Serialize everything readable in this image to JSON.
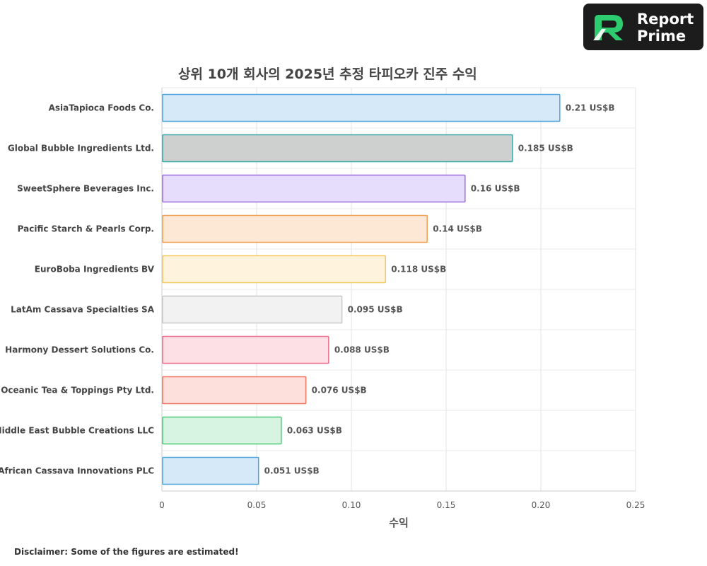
{
  "brand": {
    "logo_line1": "Report",
    "logo_line2": "Prime",
    "logo_colors": [
      "#2ecc71",
      "#1abc9c",
      "#ffffff"
    ]
  },
  "disclaimer": "Disclaimer: Some of the figures are estimated!",
  "chart_data": {
    "type": "bar",
    "orientation": "horizontal",
    "title": "상위 10개 회사의 2025년 추정 타피오카 진주 수익",
    "xlabel": "수익",
    "ylabel": "",
    "xlim": [
      0,
      0.25
    ],
    "xticks": [
      "0",
      "0.05",
      "0.10",
      "0.15",
      "0.20",
      "0.25"
    ],
    "xtick_values": [
      0,
      0.05,
      0.1,
      0.15,
      0.2,
      0.25
    ],
    "grid": true,
    "value_suffix": " US$B",
    "categories": [
      "AsiaTapioca Foods Co.",
      "Global Bubble Ingredients Ltd.",
      "SweetSphere Beverages Inc.",
      "Pacific Starch & Pearls Corp.",
      "EuroBoba Ingredients BV",
      "LatAm Cassava Specialties SA",
      "Harmony Dessert Solutions Co.",
      "Oceanic Tea & Toppings Pty Ltd.",
      "Middle East Bubble Creations LLC",
      "African Cassava Innovations PLC"
    ],
    "values": [
      0.21,
      0.185,
      0.16,
      0.14,
      0.118,
      0.095,
      0.088,
      0.076,
      0.063,
      0.051
    ],
    "data_labels": [
      "0.21 US$B",
      "0.185 US$B",
      "0.16 US$B",
      "0.14 US$B",
      "0.118 US$B",
      "0.095 US$B",
      "0.088 US$B",
      "0.076 US$B",
      "0.063 US$B",
      "0.051 US$B"
    ],
    "bar_fill_colors": [
      "#d6e9f8",
      "#cdd0ce",
      "#e6dcfb",
      "#fde8d6",
      "#fef3dc",
      "#f2f2f2",
      "#fde0e6",
      "#fde0dc",
      "#d7f3e1",
      "#d6e9f8"
    ],
    "bar_stroke_colors": [
      "#4ea6dc",
      "#3aa8a8",
      "#9b6fe0",
      "#f0a050",
      "#f5c860",
      "#c8c8c8",
      "#ee6f8d",
      "#ee7560",
      "#4ccb7a",
      "#4ea6dc"
    ]
  }
}
